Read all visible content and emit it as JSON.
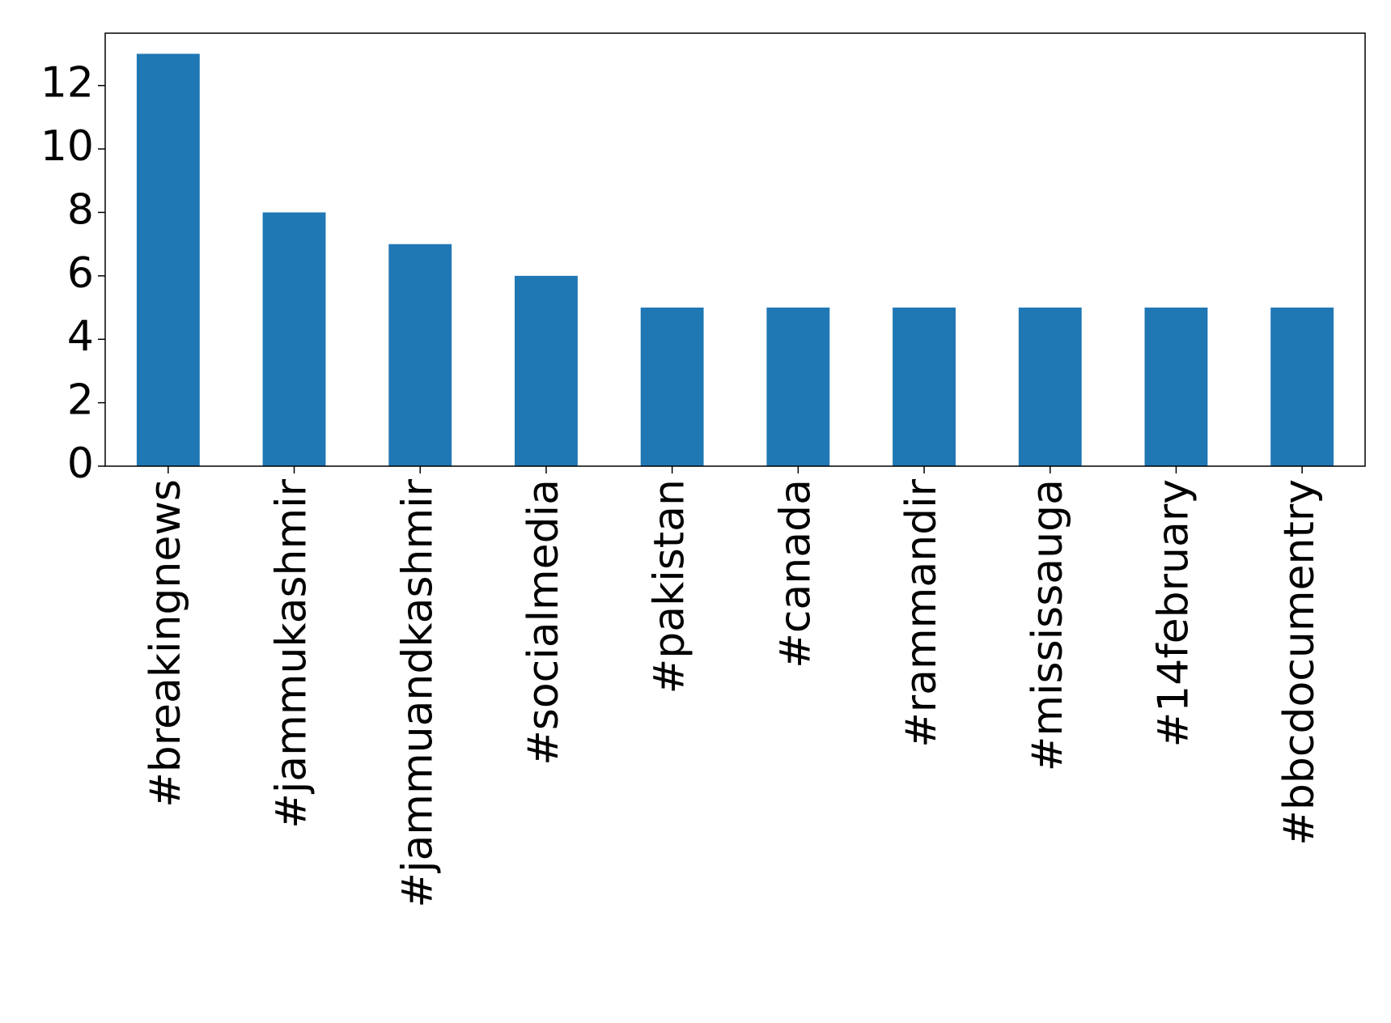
{
  "chart_data": {
    "type": "bar",
    "categories": [
      "#breakingnews",
      "#jammukashmir",
      "#jammuandkashmir",
      "#socialmedia",
      "#pakistan",
      "#canada",
      "#rammandir",
      "#mississauga",
      "#14february",
      "#bbcdocumentry"
    ],
    "values": [
      13,
      8,
      7,
      6,
      5,
      5,
      5,
      5,
      5,
      5
    ],
    "color": "#1f77b4",
    "ylim": [
      0,
      13.65
    ],
    "yticks": [
      0,
      2,
      4,
      6,
      8,
      10,
      12
    ]
  }
}
